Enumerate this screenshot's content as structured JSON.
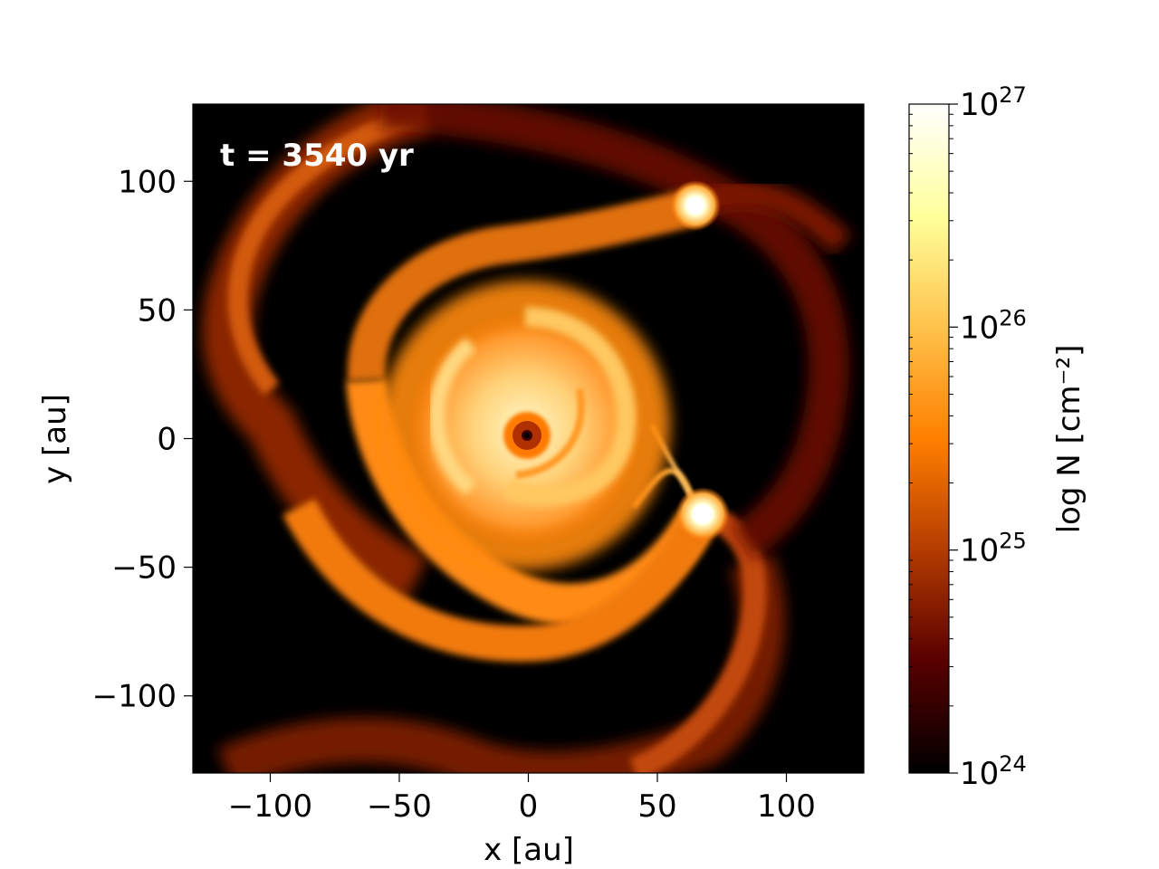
{
  "chart_data": {
    "type": "heatmap",
    "annotation": "t = 3540 yr",
    "xlabel": "x [au]",
    "ylabel": "y [au]",
    "xlim": [
      -130,
      130
    ],
    "ylim": [
      -130,
      130
    ],
    "xticks": [
      -100,
      -50,
      0,
      50,
      100
    ],
    "xtick_labels": [
      "−100",
      "−50",
      "0",
      "50",
      "100"
    ],
    "yticks": [
      -100,
      -50,
      0,
      50,
      100
    ],
    "ytick_labels": [
      "−100",
      "−50",
      "0",
      "50",
      "100"
    ],
    "colorbar": {
      "label": "log N [cm⁻²]",
      "scale": "log",
      "range": [
        1e+24,
        1e+27
      ],
      "ticks": [
        {
          "value": 1e+24,
          "base": "10",
          "exp": "24"
        },
        {
          "value": 1e+25,
          "base": "10",
          "exp": "25"
        },
        {
          "value": 1e+26,
          "base": "10",
          "exp": "26"
        },
        {
          "value": 1e+27,
          "base": "10",
          "exp": "27"
        }
      ],
      "colormap": "afmhot",
      "colors": [
        "#000000",
        "#5a0000",
        "#b23a00",
        "#ff8000",
        "#ffc34d",
        "#ffff9a",
        "#ffffff"
      ]
    },
    "features": [
      {
        "name": "central source",
        "x": 0,
        "y": 1
      },
      {
        "name": "clump",
        "x": 65,
        "y": 90
      },
      {
        "name": "clump",
        "x": 68,
        "y": -29
      }
    ]
  }
}
